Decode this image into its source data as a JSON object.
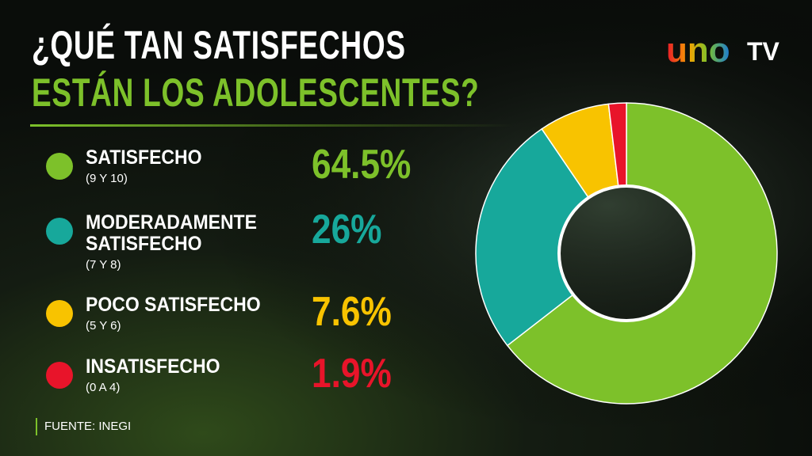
{
  "chart_data": {
    "type": "pie",
    "donut": true,
    "title": "¿QUÉ TAN SATISFECHOS",
    "subtitle": "ESTÁN LOS ADOLESCENTES?",
    "categories": [
      "SATISFECHO",
      "MODERADAMENTE SATISFECHO",
      "POCO SATISFECHO",
      "INSATISFECHO"
    ],
    "category_notes": [
      "(9 Y 10)",
      "(7 Y 8)",
      "(5 Y 6)",
      "(0 A 4)"
    ],
    "values": [
      64.5,
      26,
      7.6,
      1.9
    ],
    "value_labels": [
      "64.5%",
      "26%",
      "7.6%",
      "1.9%"
    ],
    "colors": [
      "#7dc12a",
      "#17a89b",
      "#f8c300",
      "#e8142a"
    ],
    "source": "FUENTE: INEGI"
  },
  "logo": {
    "text": "uno",
    "suffix": "TV"
  }
}
